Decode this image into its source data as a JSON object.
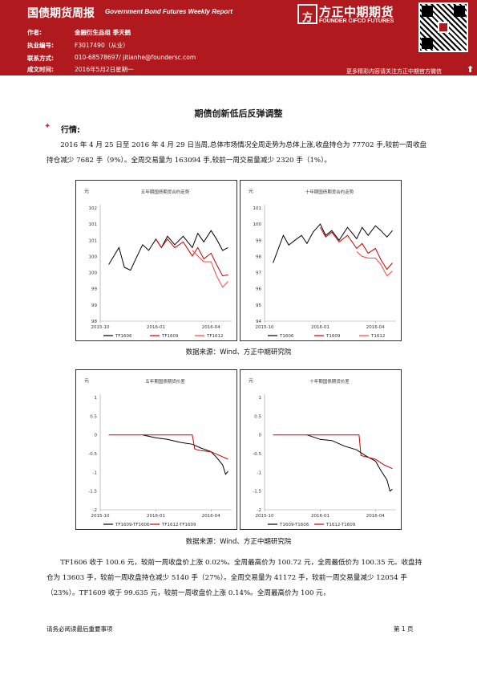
{
  "header": {
    "title_cn": "国债期货周报",
    "title_en": "Government Bond Futures Weekly Report",
    "meta": [
      {
        "label": "作者:",
        "value": "金融衍生品组 季天鹤"
      },
      {
        "label": "执业编号:",
        "value": "F3017490（从业）"
      },
      {
        "label": "联系方式:",
        "value": "010-68578697/ jitianhe@foundersc.com"
      },
      {
        "label": "成文时间:",
        "value": "2016年5月2日星期一"
      }
    ],
    "logo_cn": "方正中期期货",
    "logo_en": "FOUNDER CIFCO FUTURES",
    "tagline": "更多精彩内容请关注方正中期官方微信",
    "brand_color": "#b0191e"
  },
  "document": {
    "title": "期债创新低后反弹调整",
    "section": "行情:",
    "para1": "2016 年 4 月 25 日至 2016 年 4 月 29 日当周,总体市场情况全周走势为总体上涨,收盘持仓为 77702 手,较前一周收盘持仓减少 7682 手（9%）。全周交易量为 163094 手,较前一周交易量减少 2320 手（1%）。",
    "caption1": "数据来源：Wind、方正中期研究院",
    "caption2": "数据来源：Wind、方正中期研究院",
    "para2": "TF1606 收于 100.6 元，较前一周收盘价上涨 0.02%。全周最高价为 100.72 元，全周最低价为 100.35 元。收盘持仓为 13603 手，较前一周收盘持仓减少 5140 手（27%）。全周交易量为 41172 手，较前一周交易量减少 12054 手（23%）。TF1609 收于 99.635 元，较前一周收盘价上涨 0.14%。全周最高价为 100 元，"
  },
  "footer": {
    "left": "请务必阅读最后重要事项",
    "right": "第 1 页"
  },
  "chart_data": [
    {
      "type": "line",
      "title": "五年期国债期货合约走势",
      "ylabel": "元",
      "ylim": [
        98,
        102
      ],
      "yticks": [
        "102",
        "101",
        "101",
        "100",
        "100",
        "99",
        "99",
        "98"
      ],
      "xticks": [
        "2015-10",
        "2016-01",
        "2016-04"
      ],
      "series": [
        {
          "name": "TF1606",
          "color": "#000000",
          "x": [
            "2015-10-15",
            "2015-11-01",
            "2015-11-10",
            "2015-11-20",
            "2015-12-01",
            "2015-12-10",
            "2015-12-20",
            "2016-01-01",
            "2016-01-10",
            "2016-01-20",
            "2016-02-01",
            "2016-02-15",
            "2016-03-01",
            "2016-03-10",
            "2016-03-20",
            "2016-04-01",
            "2016-04-10",
            "2016-04-20",
            "2016-04-29"
          ],
          "values": [
            100.0,
            100.6,
            99.9,
            99.8,
            100.3,
            100.7,
            100.5,
            100.9,
            100.6,
            101.0,
            100.7,
            101.0,
            100.6,
            101.1,
            100.8,
            101.2,
            100.9,
            100.5,
            100.6
          ]
        },
        {
          "name": "TF1609",
          "color": "#cc0000",
          "x": [
            "2016-01-01",
            "2016-01-10",
            "2016-01-20",
            "2016-02-01",
            "2016-02-15",
            "2016-03-01",
            "2016-03-10",
            "2016-03-20",
            "2016-04-01",
            "2016-04-10",
            "2016-04-20",
            "2016-04-29"
          ],
          "values": [
            100.9,
            100.6,
            100.9,
            100.6,
            100.8,
            100.3,
            100.6,
            100.2,
            100.4,
            100.0,
            99.6,
            99.64
          ]
        },
        {
          "name": "TF1612",
          "color": "#ff4444",
          "x": [
            "2016-03-01",
            "2016-03-10",
            "2016-03-20",
            "2016-04-01",
            "2016-04-10",
            "2016-04-20",
            "2016-04-29"
          ],
          "values": [
            100.5,
            100.3,
            100.1,
            100.1,
            99.6,
            99.2,
            99.4
          ]
        }
      ]
    },
    {
      "type": "line",
      "title": "十年期国债期货合约走势",
      "ylabel": "元",
      "ylim": [
        94,
        101
      ],
      "yticks": [
        "101",
        "100",
        "99",
        "98",
        "97",
        "96",
        "95",
        "94"
      ],
      "xticks": [
        "2015-10",
        "2016-01",
        "2016-04"
      ],
      "series": [
        {
          "name": "T1606",
          "color": "#000000",
          "x": [
            "2015-10-15",
            "2015-11-01",
            "2015-11-10",
            "2015-11-20",
            "2015-12-01",
            "2015-12-10",
            "2015-12-20",
            "2016-01-01",
            "2016-01-10",
            "2016-01-20",
            "2016-02-01",
            "2016-02-15",
            "2016-03-01",
            "2016-03-10",
            "2016-03-20",
            "2016-04-01",
            "2016-04-10",
            "2016-04-20",
            "2016-04-29"
          ],
          "values": [
            97.6,
            99.3,
            98.7,
            99.0,
            99.3,
            98.8,
            99.5,
            100.0,
            99.3,
            99.6,
            99.0,
            99.8,
            99.1,
            99.8,
            99.3,
            99.9,
            99.6,
            99.2,
            99.6
          ]
        },
        {
          "name": "T1609",
          "color": "#cc0000",
          "x": [
            "2016-01-01",
            "2016-01-10",
            "2016-01-20",
            "2016-02-01",
            "2016-02-15",
            "2016-03-01",
            "2016-03-10",
            "2016-03-20",
            "2016-04-01",
            "2016-04-10",
            "2016-04-20",
            "2016-04-29"
          ],
          "values": [
            99.8,
            99.2,
            99.5,
            98.9,
            99.3,
            98.5,
            98.8,
            98.2,
            98.5,
            97.8,
            97.2,
            97.6
          ]
        },
        {
          "name": "T1612",
          "color": "#ff4444",
          "x": [
            "2016-03-01",
            "2016-03-10",
            "2016-03-20",
            "2016-04-01",
            "2016-04-10",
            "2016-04-20",
            "2016-04-29"
          ],
          "values": [
            98.3,
            98.0,
            97.9,
            97.9,
            97.5,
            96.8,
            97.1
          ]
        }
      ]
    },
    {
      "type": "line",
      "title": "五年期国债期货价差",
      "ylabel": "元",
      "ylim": [
        -2,
        1
      ],
      "yticks": [
        "1",
        "0.5",
        "0",
        "-0.5",
        "-1",
        "-1.5",
        "-2"
      ],
      "xticks": [
        "2015-10",
        "2016-01",
        "2016-04"
      ],
      "series": [
        {
          "name": "TF1609-TF1606",
          "color": "#000000",
          "x": [
            "2015-12-10",
            "2016-01-01",
            "2016-01-20",
            "2016-02-10",
            "2016-03-01",
            "2016-03-15",
            "2016-04-01",
            "2016-04-10",
            "2016-04-20",
            "2016-04-25",
            "2016-04-29"
          ],
          "values": [
            0,
            -0.08,
            -0.12,
            -0.2,
            -0.25,
            -0.35,
            -0.45,
            -0.6,
            -0.8,
            -1.05,
            -0.97
          ]
        },
        {
          "name": "TF1612-TF1609",
          "color": "#cc0000",
          "x": [
            "2015-10-15",
            "2016-03-01",
            "2016-03-05",
            "2016-03-15",
            "2016-04-01",
            "2016-04-15",
            "2016-04-29"
          ],
          "values": [
            0,
            0,
            -0.38,
            -0.42,
            -0.45,
            -0.55,
            -0.65
          ]
        }
      ]
    },
    {
      "type": "line",
      "title": "十年期国债期货价差",
      "ylabel": "元",
      "ylim": [
        -2,
        1
      ],
      "yticks": [
        "1",
        "0.5",
        "0",
        "-0.5",
        "-1",
        "-1.5",
        "-2"
      ],
      "xticks": [
        "2015-10",
        "2016-01",
        "2016-04"
      ],
      "series": [
        {
          "name": "T1609-T1606",
          "color": "#000000",
          "x": [
            "2015-12-10",
            "2016-01-01",
            "2016-01-20",
            "2016-02-10",
            "2016-03-01",
            "2016-03-15",
            "2016-04-01",
            "2016-04-10",
            "2016-04-20",
            "2016-04-25",
            "2016-04-29"
          ],
          "values": [
            0,
            -0.12,
            -0.15,
            -0.3,
            -0.4,
            -0.55,
            -0.7,
            -0.95,
            -1.2,
            -1.5,
            -1.45
          ]
        },
        {
          "name": "T1612-T1609",
          "color": "#cc0000",
          "x": [
            "2015-10-15",
            "2016-03-05",
            "2016-03-08",
            "2016-03-20",
            "2016-04-01",
            "2016-04-15",
            "2016-04-29"
          ],
          "values": [
            0,
            0,
            -0.55,
            -0.6,
            -0.65,
            -0.8,
            -0.9
          ]
        }
      ]
    }
  ]
}
